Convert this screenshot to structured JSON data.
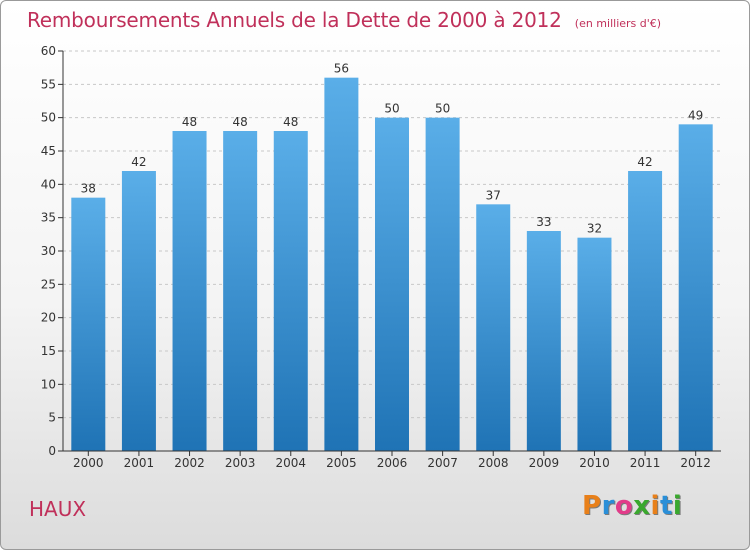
{
  "chart_data": {
    "type": "bar",
    "title": "Remboursements Annuels de la Dette de 2000 à 2012",
    "subtitle": "(en milliers d'€)",
    "xlabel": "",
    "ylabel": "",
    "categories": [
      "2000",
      "2001",
      "2002",
      "2003",
      "2004",
      "2005",
      "2006",
      "2007",
      "2008",
      "2009",
      "2010",
      "2011",
      "2012"
    ],
    "values": [
      38,
      42,
      48,
      48,
      48,
      56,
      50,
      50,
      37,
      33,
      32,
      42,
      49
    ],
    "ylim": [
      0,
      60
    ],
    "yticks": [
      0,
      5,
      10,
      15,
      20,
      25,
      30,
      35,
      40,
      45,
      50,
      55,
      60
    ],
    "grid": true,
    "legend": "none",
    "colors": {
      "bar_top": "#5aaee8",
      "bar_bottom": "#1f73b5",
      "title": "#c0305a",
      "grid": "#c8c8c8",
      "axis": "#333333"
    }
  },
  "footer": {
    "commune": "HAUX",
    "brand": "Proxiti",
    "brand_colors": [
      "#e8801a",
      "#2a8fd8",
      "#e23c8a",
      "#3aa82e",
      "#e8801a",
      "#2a8fd8",
      "#3aa82e"
    ]
  }
}
